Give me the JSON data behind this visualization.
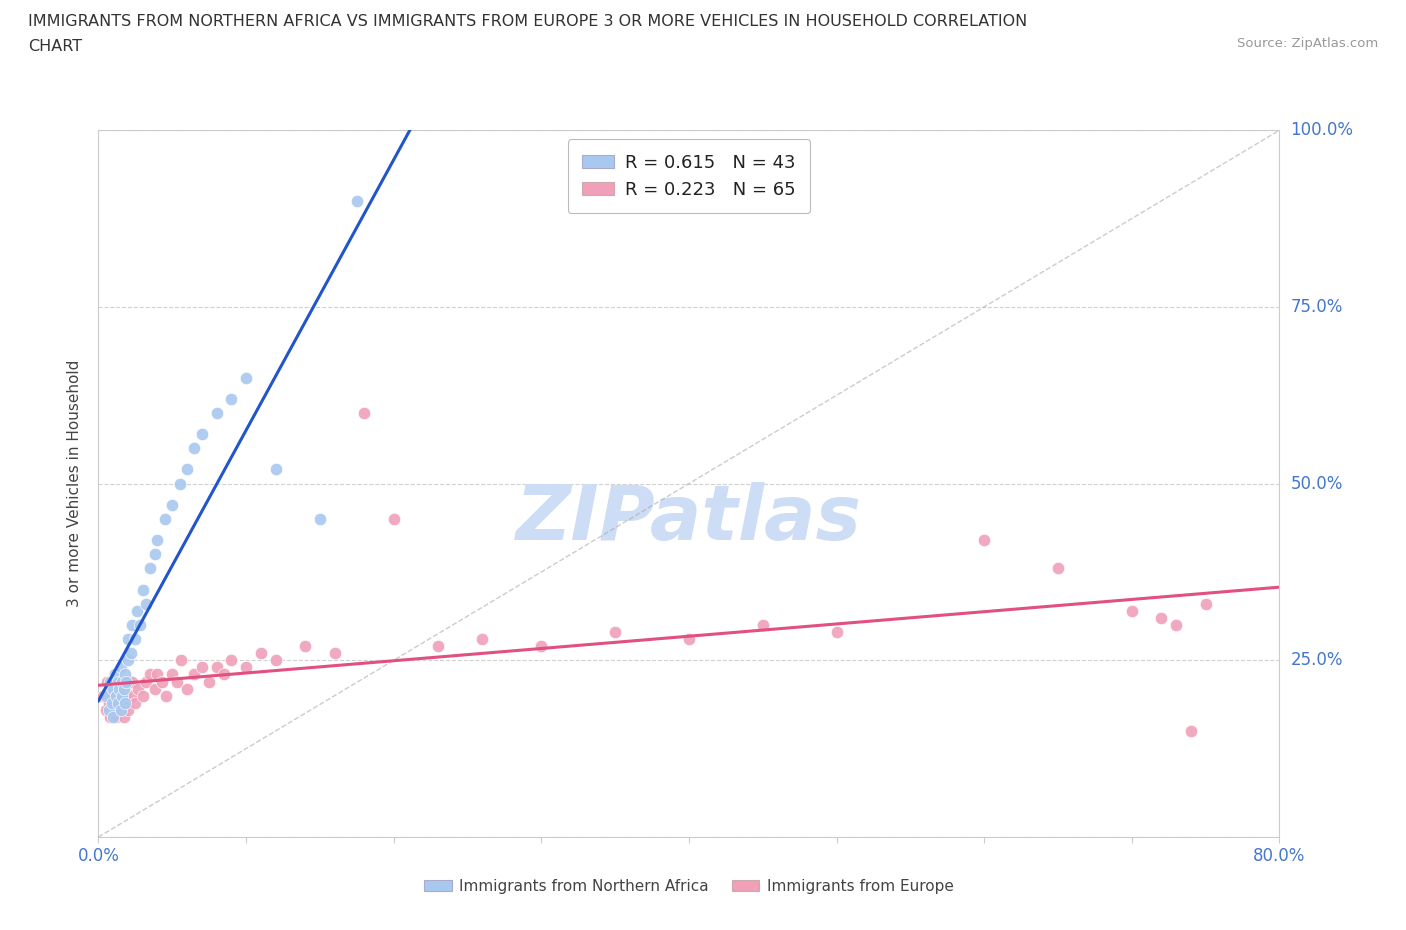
{
  "title_line1": "IMMIGRANTS FROM NORTHERN AFRICA VS IMMIGRANTS FROM EUROPE 3 OR MORE VEHICLES IN HOUSEHOLD CORRELATION",
  "title_line2": "CHART",
  "source": "Source: ZipAtlas.com",
  "ylabel": "3 or more Vehicles in Household",
  "xlim": [
    0.0,
    0.8
  ],
  "ylim": [
    0.0,
    1.0
  ],
  "xtick_positions": [
    0.0,
    0.1,
    0.2,
    0.3,
    0.4,
    0.5,
    0.6,
    0.7,
    0.8
  ],
  "xticklabels": [
    "0.0%",
    "",
    "",
    "",
    "",
    "",
    "",
    "",
    "80.0%"
  ],
  "ytick_positions": [
    0.0,
    0.25,
    0.5,
    0.75,
    1.0
  ],
  "yticklabels_right": [
    "",
    "25.0%",
    "50.0%",
    "75.0%",
    "100.0%"
  ],
  "blue_color": "#a8c8f0",
  "pink_color": "#f0a0b8",
  "blue_line_color": "#2255cc",
  "pink_line_color": "#e05080",
  "ref_line_color": "#aaaaaa",
  "legend_R1": "R = 0.615",
  "legend_N1": "N = 43",
  "legend_R2": "R = 0.223",
  "legend_N2": "N = 65",
  "legend_label1": "Immigrants from Northern Africa",
  "legend_label2": "Immigrants from Europe",
  "watermark": "ZIPatlas",
  "watermark_color": "#ccddf5",
  "grid_color": "#cccccc",
  "background_color": "#ffffff",
  "blue_scatter_x": [
    0.005,
    0.007,
    0.008,
    0.009,
    0.01,
    0.01,
    0.011,
    0.012,
    0.013,
    0.013,
    0.014,
    0.015,
    0.015,
    0.016,
    0.016,
    0.017,
    0.018,
    0.018,
    0.019,
    0.02,
    0.02,
    0.022,
    0.023,
    0.025,
    0.026,
    0.028,
    0.03,
    0.032,
    0.035,
    0.038,
    0.04,
    0.045,
    0.05,
    0.055,
    0.06,
    0.065,
    0.07,
    0.08,
    0.09,
    0.1,
    0.12,
    0.15,
    0.175
  ],
  "blue_scatter_y": [
    0.2,
    0.18,
    0.22,
    0.19,
    0.21,
    0.17,
    0.23,
    0.2,
    0.19,
    0.22,
    0.21,
    0.18,
    0.24,
    0.2,
    0.22,
    0.21,
    0.23,
    0.19,
    0.22,
    0.25,
    0.28,
    0.26,
    0.3,
    0.28,
    0.32,
    0.3,
    0.35,
    0.33,
    0.38,
    0.4,
    0.42,
    0.45,
    0.47,
    0.5,
    0.52,
    0.55,
    0.57,
    0.6,
    0.62,
    0.65,
    0.52,
    0.45,
    0.9
  ],
  "pink_scatter_x": [
    0.003,
    0.005,
    0.006,
    0.007,
    0.008,
    0.008,
    0.009,
    0.01,
    0.01,
    0.011,
    0.012,
    0.012,
    0.013,
    0.014,
    0.015,
    0.015,
    0.016,
    0.017,
    0.018,
    0.018,
    0.019,
    0.02,
    0.02,
    0.022,
    0.023,
    0.025,
    0.027,
    0.03,
    0.032,
    0.035,
    0.038,
    0.04,
    0.043,
    0.046,
    0.05,
    0.053,
    0.056,
    0.06,
    0.065,
    0.07,
    0.075,
    0.08,
    0.085,
    0.09,
    0.1,
    0.11,
    0.12,
    0.14,
    0.16,
    0.18,
    0.2,
    0.23,
    0.26,
    0.3,
    0.35,
    0.4,
    0.45,
    0.5,
    0.6,
    0.65,
    0.7,
    0.72,
    0.73,
    0.74,
    0.75
  ],
  "pink_scatter_y": [
    0.2,
    0.18,
    0.22,
    0.19,
    0.2,
    0.17,
    0.21,
    0.19,
    0.22,
    0.18,
    0.2,
    0.17,
    0.19,
    0.21,
    0.18,
    0.2,
    0.19,
    0.17,
    0.21,
    0.2,
    0.19,
    0.22,
    0.18,
    0.2,
    0.22,
    0.19,
    0.21,
    0.2,
    0.22,
    0.23,
    0.21,
    0.23,
    0.22,
    0.2,
    0.23,
    0.22,
    0.25,
    0.21,
    0.23,
    0.24,
    0.22,
    0.24,
    0.23,
    0.25,
    0.24,
    0.26,
    0.25,
    0.27,
    0.26,
    0.6,
    0.45,
    0.27,
    0.28,
    0.27,
    0.29,
    0.28,
    0.3,
    0.29,
    0.42,
    0.38,
    0.32,
    0.31,
    0.3,
    0.15,
    0.33
  ]
}
